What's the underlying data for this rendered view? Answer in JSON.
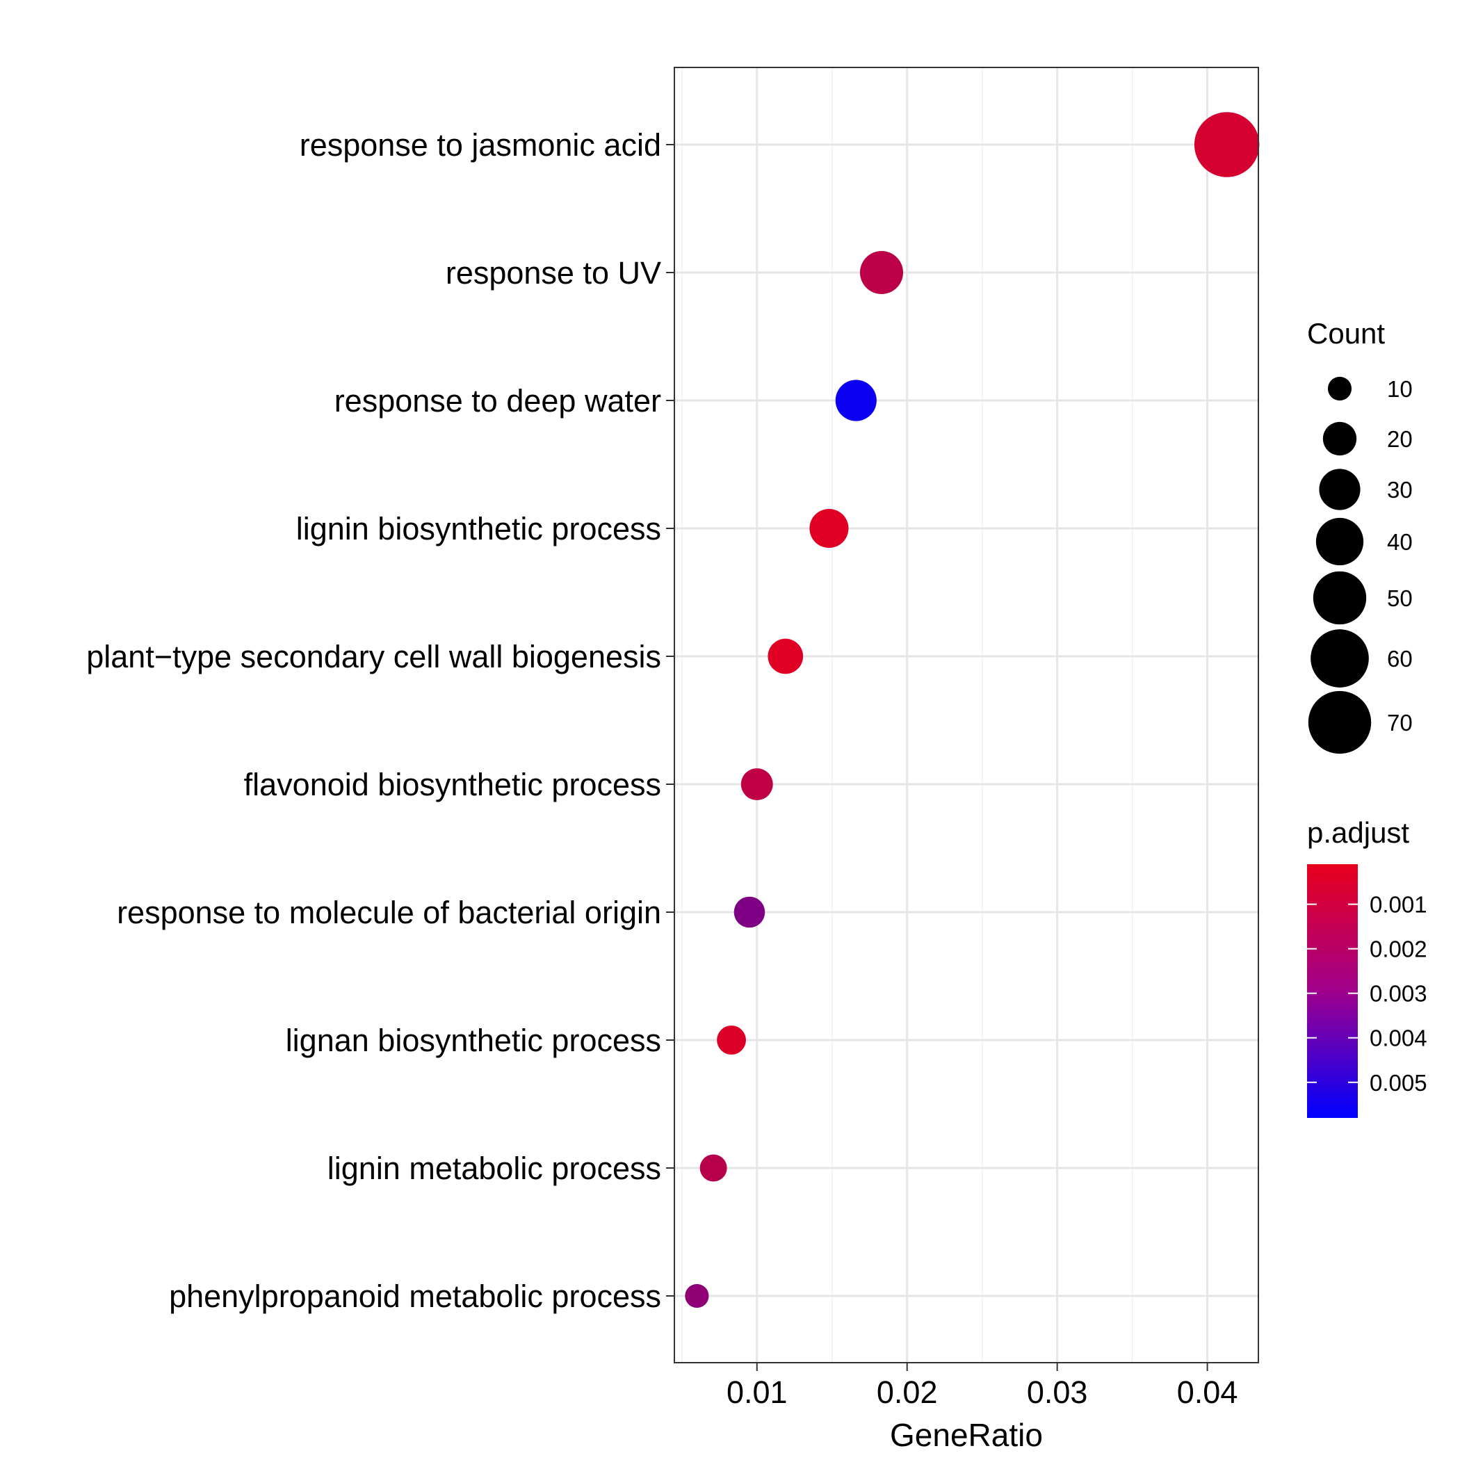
{
  "chart_data": {
    "type": "scatter",
    "xlabel": "GeneRatio",
    "xlim": [
      0.0045,
      0.0434
    ],
    "x_ticks": [
      0.01,
      0.02,
      0.03,
      0.04
    ],
    "x_tick_labels": [
      "0.01",
      "0.02",
      "0.03",
      "0.04"
    ],
    "grid": true,
    "categories": [
      "response to jasmonic acid",
      "response to UV",
      "response to deep water",
      "lignin biosynthetic process",
      "plant−type secondary cell wall biogenesis",
      "flavonoid biosynthetic process",
      "response to molecule of bacterial origin",
      "lignan biosynthetic process",
      "lignin metabolic process",
      "phenylpropanoid metabolic process"
    ],
    "points": [
      {
        "term": "response to jasmonic acid",
        "gene_ratio": 0.0413,
        "count": 75,
        "p_adjust": 0.0006
      },
      {
        "term": "response to UV",
        "gene_ratio": 0.0183,
        "count": 33,
        "p_adjust": 0.0012
      },
      {
        "term": "response to deep water",
        "gene_ratio": 0.0166,
        "count": 30,
        "p_adjust": 0.0055
      },
      {
        "term": "lignin biosynthetic process",
        "gene_ratio": 0.0148,
        "count": 27,
        "p_adjust": 0.0003
      },
      {
        "term": "plant−type secondary cell wall biogenesis",
        "gene_ratio": 0.0119,
        "count": 22,
        "p_adjust": 0.0003
      },
      {
        "term": "flavonoid biosynthetic process",
        "gene_ratio": 0.01,
        "count": 18,
        "p_adjust": 0.0011
      },
      {
        "term": "response to molecule of bacterial origin",
        "gene_ratio": 0.0095,
        "count": 17,
        "p_adjust": 0.0027
      },
      {
        "term": "lignan biosynthetic process",
        "gene_ratio": 0.0083,
        "count": 15,
        "p_adjust": 0.0004
      },
      {
        "term": "lignin metabolic process",
        "gene_ratio": 0.0071,
        "count": 13,
        "p_adjust": 0.0013
      },
      {
        "term": "phenylpropanoid metabolic process",
        "gene_ratio": 0.006,
        "count": 10,
        "p_adjust": 0.0023
      }
    ],
    "size_legend": {
      "title": "Count",
      "values": [
        10,
        20,
        30,
        40,
        50,
        60,
        70
      ],
      "labels": [
        "10",
        "20",
        "30",
        "40",
        "50",
        "60",
        "70"
      ]
    },
    "color_legend": {
      "title": "p.adjust",
      "range": [
        0.0001,
        0.0058
      ],
      "low_color": "#e8001c",
      "high_color": "#0000ff",
      "ticks": [
        0.001,
        0.002,
        0.003,
        0.004,
        0.005
      ],
      "labels": [
        "0.001",
        "0.002",
        "0.003",
        "0.004",
        "0.005"
      ]
    },
    "legend_position": "right"
  }
}
